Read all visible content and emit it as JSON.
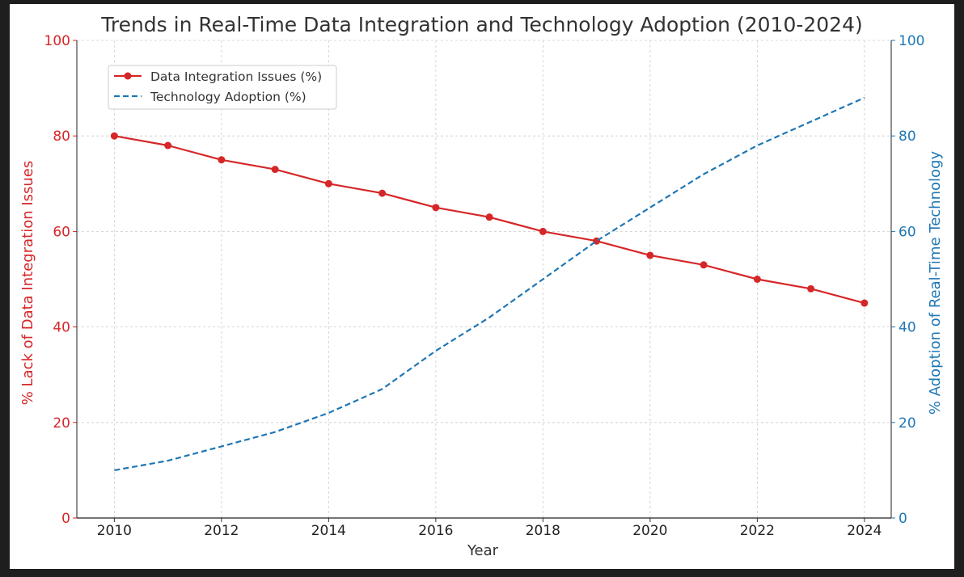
{
  "chart_data": {
    "type": "line",
    "title": "Trends in Real-Time Data Integration and Technology Adoption (2010-2024)",
    "xlabel": "Year",
    "ylabel_left": "% Lack of Data Integration Issues",
    "ylabel_right": "% Adoption of Real-Time Technology",
    "x": [
      2010,
      2011,
      2012,
      2013,
      2014,
      2015,
      2016,
      2017,
      2018,
      2019,
      2020,
      2021,
      2022,
      2023,
      2024
    ],
    "x_ticks": [
      "2010",
      "2012",
      "2014",
      "2016",
      "2018",
      "2020",
      "2022",
      "2024"
    ],
    "ylim_left": [
      0,
      100
    ],
    "ylim_right": [
      0,
      100
    ],
    "y_ticks": [
      "0",
      "20",
      "40",
      "60",
      "80",
      "100"
    ],
    "grid": true,
    "legend_position": "top-left",
    "series": [
      {
        "name": "Data Integration Issues (%)",
        "axis": "left",
        "color": "#d62728",
        "style": "solid-with-markers",
        "values": [
          80,
          78,
          75,
          73,
          70,
          68,
          65,
          63,
          60,
          58,
          55,
          53,
          50,
          48,
          45
        ]
      },
      {
        "name": "Technology Adoption (%)",
        "axis": "right",
        "color": "#1f77b4",
        "style": "dashed",
        "values": [
          10,
          12,
          15,
          18,
          22,
          27,
          35,
          42,
          50,
          58,
          65,
          72,
          78,
          83,
          88
        ]
      }
    ]
  }
}
